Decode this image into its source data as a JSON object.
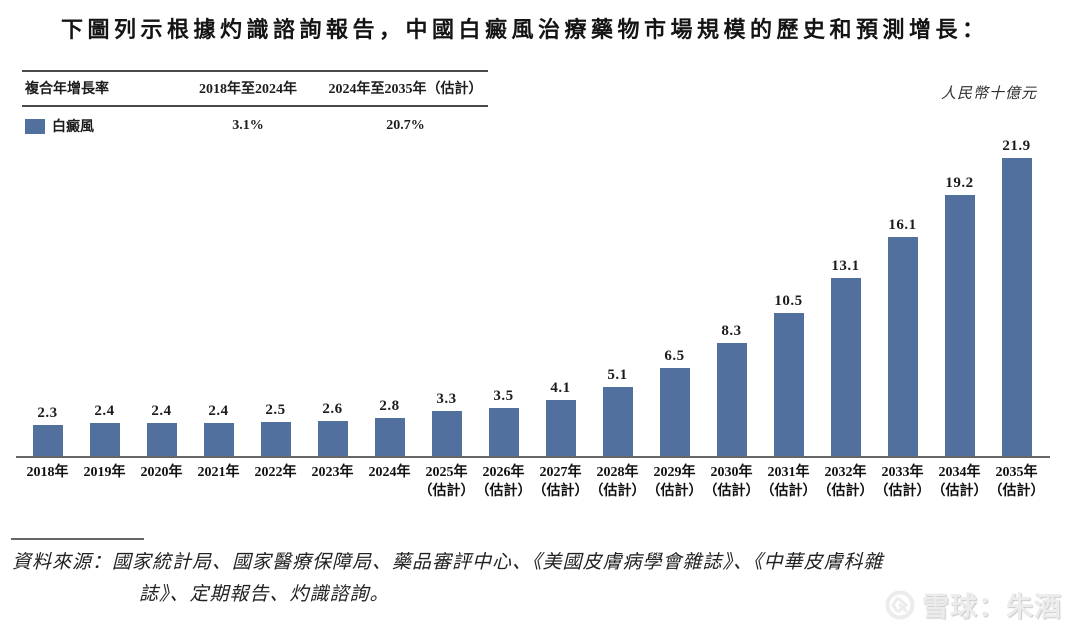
{
  "title": "下圖列示根據灼識諮詢報告，中國白癜風治療藥物市場規模的歷史和預測增長：",
  "unit_label": "人民幣十億元",
  "cagr_table": {
    "headers": [
      "複合年增長率",
      "2018年至2024年",
      "2024年至2035年（估計）"
    ],
    "rows": [
      {
        "label": "白癜風",
        "swatch_color": "#52709E",
        "values": [
          "3.1%",
          "20.7%"
        ]
      }
    ]
  },
  "chart_data": {
    "type": "bar",
    "title": "中國白癜風治療藥物市場規模的歷史和預測增長",
    "series_name": "白癜風",
    "unit": "人民幣十億元",
    "categories": [
      "2018年",
      "2019年",
      "2020年",
      "2021年",
      "2022年",
      "2023年",
      "2024年",
      "2025年",
      "2026年",
      "2027年",
      "2028年",
      "2029年",
      "2030年",
      "2031年",
      "2032年",
      "2033年",
      "2034年",
      "2035年"
    ],
    "estimate_suffix": "（估計）",
    "estimate_from_index": 7,
    "values": [
      2.3,
      2.4,
      2.4,
      2.4,
      2.5,
      2.6,
      2.8,
      3.3,
      3.5,
      4.1,
      5.1,
      6.5,
      8.3,
      10.5,
      13.1,
      16.1,
      19.2,
      21.9
    ],
    "bar_color": "#52709E",
    "ylim": [
      0,
      22
    ],
    "grid": false,
    "legend_position": "table-top-left"
  },
  "source": {
    "line1": "資料來源：國家統計局、國家醫療保障局、藥品審評中心、《美國皮膚病學會雜誌》、《中華皮膚科雜",
    "line2": "誌》、定期報告、灼識諮詢。"
  },
  "watermark": {
    "text": "雪球：朱酒",
    "logo": "xueqiu-logo"
  }
}
